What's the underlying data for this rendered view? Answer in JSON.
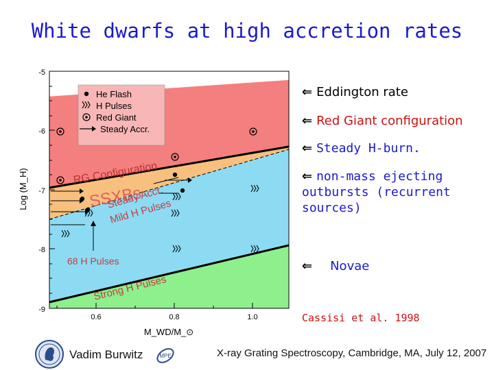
{
  "title": "White dwarfs at high accretion rates",
  "plot": {
    "y_axis_label": "Log (Ṁ_H)",
    "y_ticks": [
      "-5",
      "-6",
      "-7",
      "-8",
      "-9"
    ],
    "x_ticks": [
      "0.6",
      "0.8",
      "1.0"
    ],
    "x_axis_label": "M_WD/M_⊙",
    "legend": [
      "He Flash",
      "H Pulses",
      "Red Giant",
      "Steady Accr."
    ],
    "region_labels": {
      "rg": "RG Configuration",
      "ssxbs": "SSXBs",
      "steady": "Steady Accr.",
      "mild": "Mild H Pulses",
      "pulses68": "68 H Pulses",
      "strong": "Strong H Pulses"
    },
    "colors": {
      "red_giant": "#f47f7f",
      "steady": "#f7c07e",
      "mild": "#8ddbf3",
      "strong": "#8df08d",
      "boundary": "#000000"
    }
  },
  "notes": {
    "eddington": "Eddington rate",
    "red_giant": "Red Giant configuration",
    "steady": "Steady H-burn.",
    "nonmass": [
      "non-mass ejecting",
      "outbursts (recurrent",
      "sources)"
    ],
    "novae": "Novae",
    "arrow_glyph": "⇐"
  },
  "citation": "Cassisi et al. 1998",
  "footer": {
    "author": "Vadim Burwitz",
    "conference": "X-ray Grating Spectroscopy, Cambridge, MA, July 12, 2007"
  }
}
